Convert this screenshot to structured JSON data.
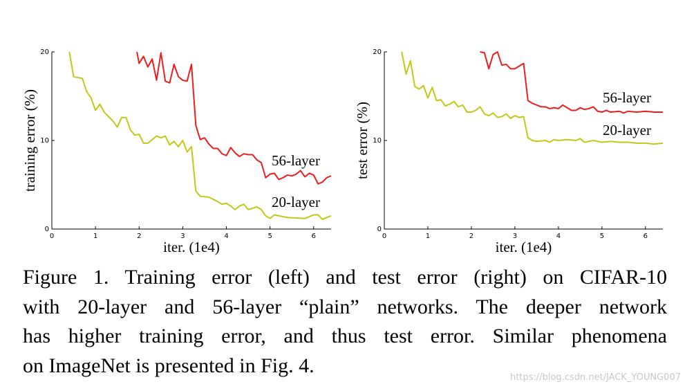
{
  "chart_data": [
    {
      "type": "line",
      "ylabel": "training error (%)",
      "xlabel": "iter. (1e4)",
      "xlim": [
        0,
        6.4
      ],
      "ylim": [
        0,
        20
      ],
      "xticks": [
        0,
        1,
        2,
        3,
        4,
        5,
        6
      ],
      "yticks": [
        0,
        10,
        20
      ],
      "series": [
        {
          "name": "56-layer",
          "color": "#ee1c1c",
          "x": [
            1.95,
            2.0,
            2.1,
            2.2,
            2.3,
            2.4,
            2.5,
            2.6,
            2.7,
            2.8,
            2.9,
            3.0,
            3.1,
            3.2,
            3.3,
            3.4,
            3.5,
            3.6,
            3.7,
            3.8,
            3.9,
            4.0,
            4.1,
            4.2,
            4.3,
            4.4,
            4.5,
            4.6,
            4.7,
            4.8,
            4.9,
            5.0,
            5.1,
            5.2,
            5.3,
            5.4,
            5.5,
            5.6,
            5.7,
            5.8,
            5.9,
            6.0,
            6.1,
            6.2,
            6.3,
            6.4
          ],
          "values": [
            20,
            18.7,
            19.5,
            18.3,
            19.2,
            16.8,
            19.9,
            16.7,
            16.5,
            18.6,
            17.2,
            16.8,
            16.7,
            18.6,
            11.7,
            10.1,
            10.3,
            9.6,
            9.1,
            9.1,
            8.5,
            8.3,
            9.2,
            8.6,
            8.2,
            8.5,
            8.4,
            8.4,
            7.8,
            7.5,
            5.8,
            6.2,
            6.3,
            5.6,
            5.8,
            6.1,
            6.0,
            6.2,
            6.6,
            5.9,
            6.3,
            6.1,
            5.1,
            5.3,
            5.8,
            6.0
          ]
        },
        {
          "name": "20-layer",
          "color": "#c3c716",
          "x": [
            0.4,
            0.5,
            0.7,
            0.8,
            0.9,
            1.0,
            1.1,
            1.2,
            1.4,
            1.5,
            1.6,
            1.7,
            1.8,
            1.9,
            2.0,
            2.1,
            2.2,
            2.4,
            2.5,
            2.6,
            2.7,
            2.8,
            2.9,
            3.0,
            3.1,
            3.2,
            3.3,
            3.4,
            3.6,
            3.8,
            3.9,
            4.0,
            4.1,
            4.2,
            4.3,
            4.4,
            4.5,
            4.7,
            4.8,
            4.9,
            5.0,
            5.1,
            5.4,
            5.8,
            6.0,
            6.1,
            6.2,
            6.4
          ],
          "values": [
            20,
            17.2,
            17,
            15.5,
            14.8,
            13.4,
            14.1,
            13.2,
            12.2,
            11.5,
            12.6,
            12.6,
            11.2,
            10.6,
            10.7,
            9.7,
            9.7,
            10.5,
            10.3,
            10.5,
            9.5,
            9.9,
            9.3,
            10.0,
            8.7,
            9.3,
            4.3,
            3.7,
            3.6,
            3.1,
            2.8,
            2.9,
            2.6,
            2.2,
            2.6,
            2.8,
            2.2,
            2.5,
            2.2,
            1.5,
            1.2,
            1.6,
            1.3,
            1.2,
            1.6,
            1.6,
            1.1,
            1.5
          ]
        }
      ]
    },
    {
      "type": "line",
      "ylabel": "test error (%)",
      "xlabel": "iter. (1e4)",
      "xlim": [
        0,
        6.4
      ],
      "ylim": [
        0,
        20
      ],
      "xticks": [
        0,
        1,
        2,
        3,
        4,
        5,
        6
      ],
      "yticks": [
        0,
        10,
        20
      ],
      "series": [
        {
          "name": "56-layer",
          "color": "#ee1c1c",
          "x": [
            2.2,
            2.3,
            2.4,
            2.5,
            2.6,
            2.7,
            2.8,
            2.9,
            3.0,
            3.1,
            3.2,
            3.3,
            3.4,
            3.5,
            3.6,
            3.7,
            3.8,
            3.9,
            4.0,
            4.1,
            4.2,
            4.3,
            4.4,
            4.5,
            4.6,
            4.7,
            4.8,
            4.9,
            5.0,
            5.1,
            5.2,
            5.4,
            5.5,
            5.6,
            5.8,
            6.0,
            6.2,
            6.4
          ],
          "values": [
            20,
            19.9,
            18.1,
            19.7,
            20,
            18.5,
            18.6,
            18.1,
            18.1,
            18.4,
            18.7,
            14.5,
            14.2,
            14.0,
            13.8,
            13.8,
            13.6,
            13.7,
            13.6,
            14.0,
            13.7,
            13.4,
            13.4,
            13.7,
            13.5,
            13.6,
            13.8,
            13.3,
            13.2,
            13.4,
            13.2,
            13.3,
            13.1,
            13.3,
            13.2,
            13.3,
            13.2,
            13.2
          ]
        },
        {
          "name": "20-layer",
          "color": "#c3c716",
          "x": [
            0.4,
            0.5,
            0.6,
            0.7,
            0.8,
            0.9,
            1.0,
            1.1,
            1.2,
            1.3,
            1.4,
            1.5,
            1.6,
            1.7,
            1.8,
            1.9,
            2.0,
            2.1,
            2.2,
            2.3,
            2.4,
            2.5,
            2.6,
            2.7,
            2.8,
            2.9,
            3.0,
            3.1,
            3.2,
            3.3,
            3.4,
            3.5,
            3.7,
            3.8,
            3.9,
            4.0,
            4.2,
            4.4,
            4.5,
            4.6,
            4.8,
            5.0,
            5.2,
            5.4,
            5.6,
            5.8,
            6.0,
            6.2,
            6.4
          ],
          "values": [
            20,
            17.5,
            19,
            16.1,
            15.8,
            16.2,
            14.8,
            16,
            14.5,
            14.6,
            13.9,
            14.1,
            14.4,
            13.8,
            14.0,
            13.2,
            13.2,
            13.4,
            13.8,
            13.0,
            12.8,
            13.1,
            12.6,
            12.7,
            13.0,
            12.5,
            12.8,
            12.6,
            12.7,
            10.3,
            10.0,
            9.9,
            10.0,
            9.8,
            10.1,
            10.0,
            10.1,
            10.0,
            10.2,
            9.8,
            10.0,
            9.8,
            9.9,
            9.8,
            9.8,
            9.7,
            9.7,
            9.6,
            9.7
          ]
        }
      ]
    }
  ],
  "caption": {
    "lines": [
      "Figure 1. Training error (left) and test error (right) on CIFAR-10",
      "with 20-layer and 56-layer “plain” networks. The deeper network",
      "has higher training error, and thus test error.  Similar phenomena",
      "on ImageNet is presented in Fig. 4."
    ]
  },
  "watermark": "https://blog.csdn.net/JACK_YOUNG007"
}
